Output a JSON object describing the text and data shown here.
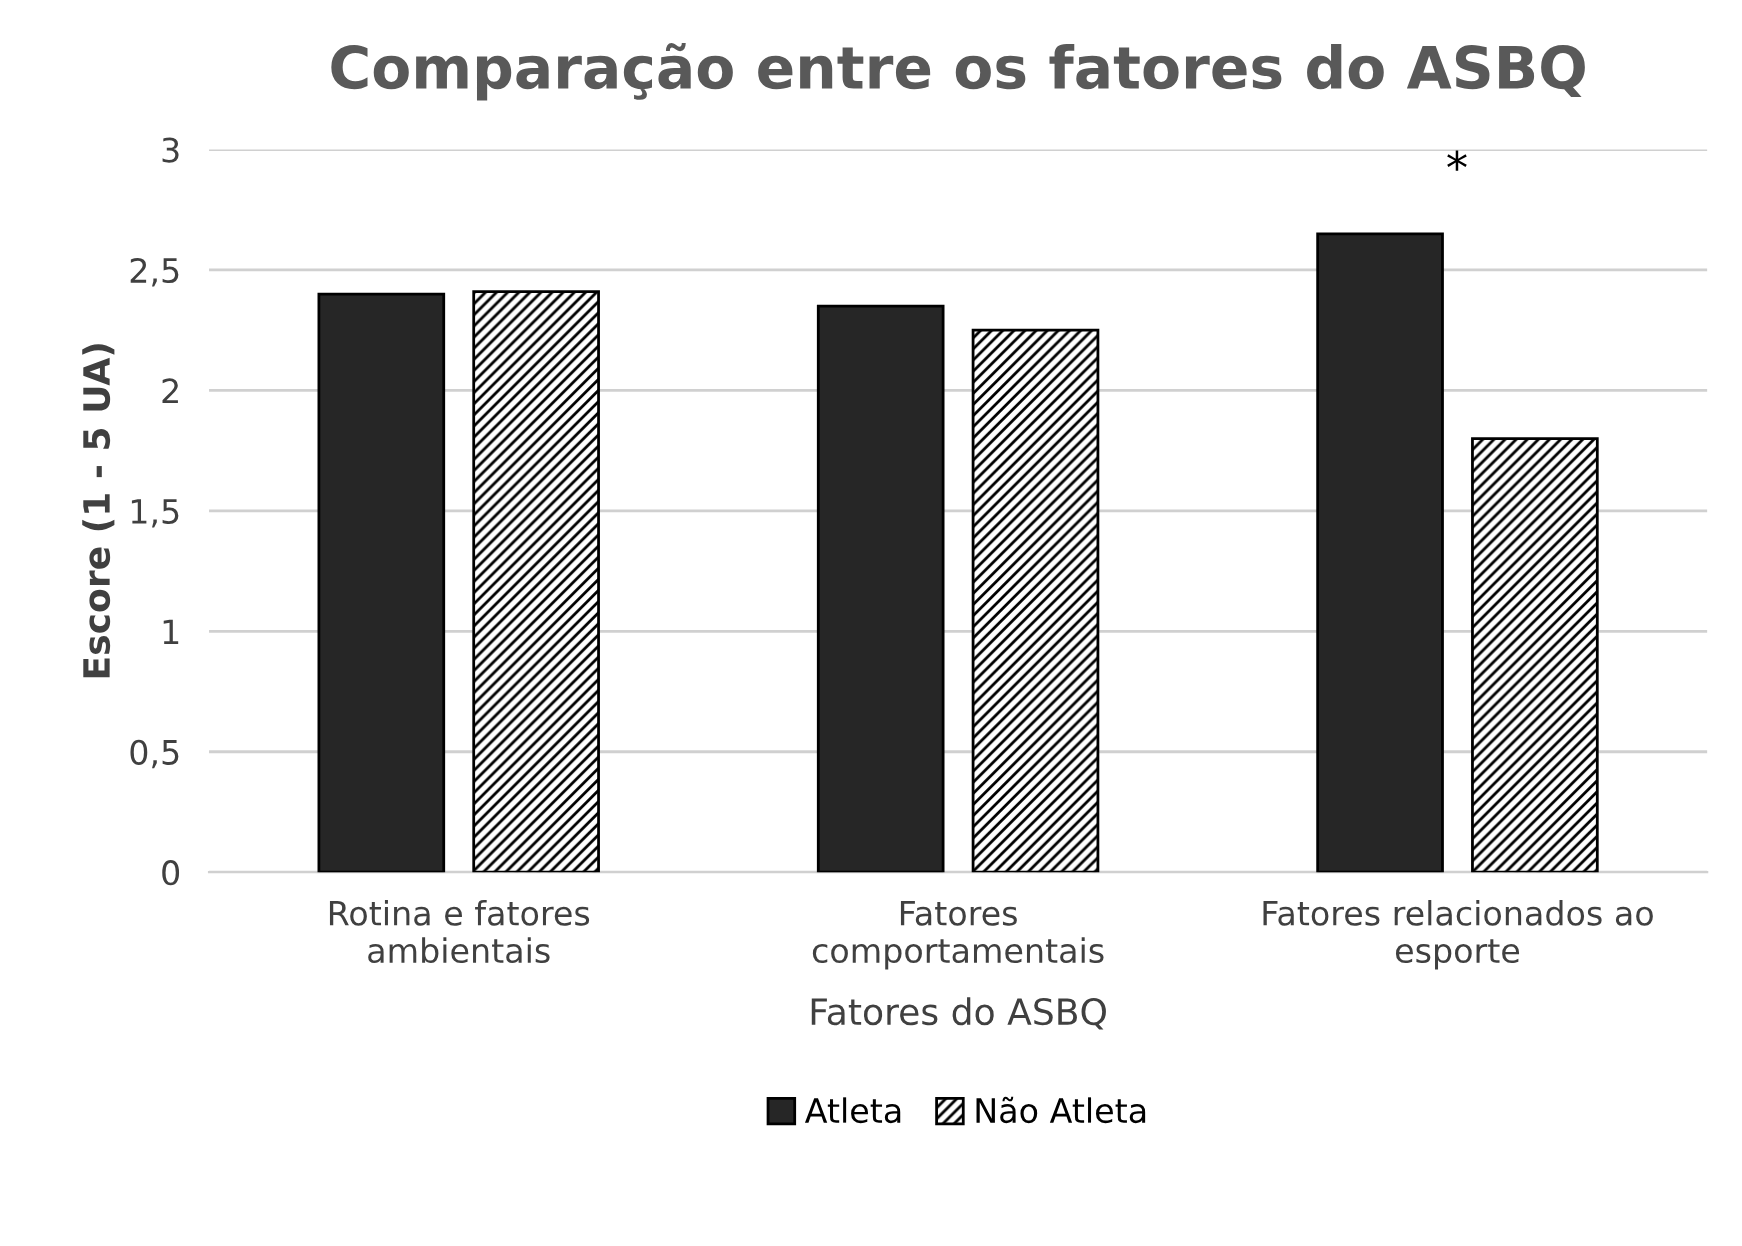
{
  "chart_data": {
    "type": "bar",
    "title": "Comparação entre os fatores do ASBQ",
    "xlabel": "Fatores do ASBQ",
    "ylabel": "Escore (1 - 5 UA)",
    "categories": [
      "Rotina e fatores ambientais",
      "Fatores comportamentais",
      "Fatores relacionados ao esporte"
    ],
    "series": [
      {
        "name": "Atleta",
        "color": "#262626",
        "values": [
          2.4,
          2.35,
          2.65
        ]
      },
      {
        "name": "Não Atleta",
        "color": "#000000",
        "values": [
          2.41,
          2.25,
          1.8
        ]
      }
    ],
    "ylim": [
      0,
      3
    ],
    "yticks": [
      0,
      {
        "value": 0.5,
        "label": "0,5"
      },
      1,
      {
        "value": 1.5,
        "label": "1,5"
      },
      2,
      {
        "value": 2.5,
        "label": "2,5"
      },
      3
    ],
    "annotations": [
      "*"
    ],
    "grid": "y",
    "legend": "bottom"
  }
}
